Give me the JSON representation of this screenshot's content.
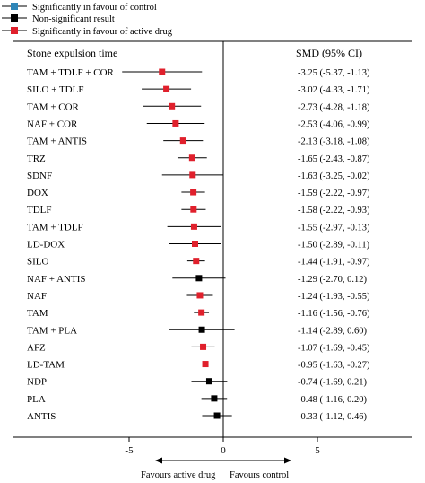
{
  "legend": [
    {
      "label": "Significantly in favour of control",
      "color": "#2e86b8"
    },
    {
      "label": "Non-significant result",
      "color": "#000000"
    },
    {
      "label": "Significantly in favour of active drug",
      "color": "#e0202c"
    }
  ],
  "header": {
    "left": "Stone expulsion time",
    "right": "SMD (95% CI)"
  },
  "footer": {
    "left": "Favours active drug",
    "right": "Favours control"
  },
  "chart_data": {
    "type": "forest",
    "xlim": [
      -12,
      12
    ],
    "xticks": [
      {
        "value": -5,
        "label": "-5"
      },
      {
        "value": 0,
        "label": "0"
      },
      {
        "value": 5,
        "label": "5"
      }
    ],
    "rows": [
      {
        "name": "TAM + TDLF + COR",
        "smd": -3.25,
        "lo": -5.37,
        "hi": -1.13,
        "ci_text": "-3.25 (-5.37, -1.13)",
        "sig": "active"
      },
      {
        "name": "SILO + TDLF",
        "smd": -3.02,
        "lo": -4.33,
        "hi": -1.71,
        "ci_text": "-3.02 (-4.33, -1.71)",
        "sig": "active"
      },
      {
        "name": "TAM + COR",
        "smd": -2.73,
        "lo": -4.28,
        "hi": -1.18,
        "ci_text": "-2.73 (-4.28, -1.18)",
        "sig": "active"
      },
      {
        "name": "NAF + COR",
        "smd": -2.53,
        "lo": -4.06,
        "hi": -0.99,
        "ci_text": "-2.53 (-4.06, -0.99)",
        "sig": "active"
      },
      {
        "name": "TAM + ANTIS",
        "smd": -2.13,
        "lo": -3.18,
        "hi": -1.08,
        "ci_text": "-2.13 (-3.18, -1.08)",
        "sig": "active"
      },
      {
        "name": "TRZ",
        "smd": -1.65,
        "lo": -2.43,
        "hi": -0.87,
        "ci_text": "-1.65 (-2.43, -0.87)",
        "sig": "active"
      },
      {
        "name": "SDNF",
        "smd": -1.63,
        "lo": -3.25,
        "hi": -0.02,
        "ci_text": "-1.63 (-3.25, -0.02)",
        "sig": "active"
      },
      {
        "name": "DOX",
        "smd": -1.59,
        "lo": -2.22,
        "hi": -0.97,
        "ci_text": "-1.59 (-2.22, -0.97)",
        "sig": "active"
      },
      {
        "name": "TDLF",
        "smd": -1.58,
        "lo": -2.22,
        "hi": -0.93,
        "ci_text": "-1.58 (-2.22, -0.93)",
        "sig": "active"
      },
      {
        "name": "TAM + TDLF",
        "smd": -1.55,
        "lo": -2.97,
        "hi": -0.13,
        "ci_text": "-1.55 (-2.97, -0.13)",
        "sig": "active"
      },
      {
        "name": "LD-DOX",
        "smd": -1.5,
        "lo": -2.89,
        "hi": -0.11,
        "ci_text": "-1.50 (-2.89, -0.11)",
        "sig": "active"
      },
      {
        "name": "SILO",
        "smd": -1.44,
        "lo": -1.91,
        "hi": -0.97,
        "ci_text": "-1.44 (-1.91, -0.97)",
        "sig": "active"
      },
      {
        "name": "NAF + ANTIS",
        "smd": -1.29,
        "lo": -2.7,
        "hi": 0.12,
        "ci_text": "-1.29 (-2.70, 0.12)",
        "sig": "ns"
      },
      {
        "name": "NAF",
        "smd": -1.24,
        "lo": -1.93,
        "hi": -0.55,
        "ci_text": "-1.24 (-1.93, -0.55)",
        "sig": "active"
      },
      {
        "name": "TAM",
        "smd": -1.16,
        "lo": -1.56,
        "hi": -0.76,
        "ci_text": "-1.16 (-1.56, -0.76)",
        "sig": "active"
      },
      {
        "name": "TAM + PLA",
        "smd": -1.14,
        "lo": -2.89,
        "hi": 0.6,
        "ci_text": "-1.14 (-2.89, 0.60)",
        "sig": "ns"
      },
      {
        "name": "AFZ",
        "smd": -1.07,
        "lo": -1.69,
        "hi": -0.45,
        "ci_text": "-1.07 (-1.69, -0.45)",
        "sig": "active"
      },
      {
        "name": "LD-TAM",
        "smd": -0.95,
        "lo": -1.63,
        "hi": -0.27,
        "ci_text": "-0.95 (-1.63, -0.27)",
        "sig": "active"
      },
      {
        "name": "NDP",
        "smd": -0.74,
        "lo": -1.69,
        "hi": 0.21,
        "ci_text": "-0.74 (-1.69, 0.21)",
        "sig": "ns"
      },
      {
        "name": "PLA",
        "smd": -0.48,
        "lo": -1.16,
        "hi": 0.2,
        "ci_text": "-0.48 (-1.16, 0.20)",
        "sig": "ns"
      },
      {
        "name": "ANTIS",
        "smd": -0.33,
        "lo": -1.12,
        "hi": 0.46,
        "ci_text": "-0.33 (-1.12, 0.46)",
        "sig": "ns"
      }
    ]
  }
}
